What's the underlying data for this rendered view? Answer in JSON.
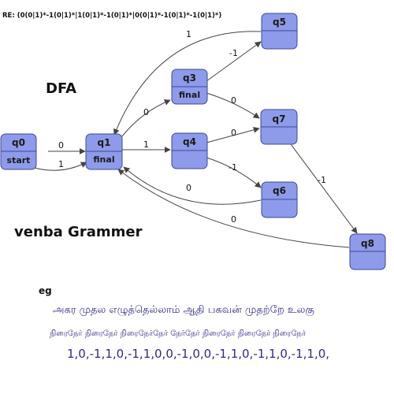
{
  "regex_line": "RE:  (0(0|1)*-1(0|1)*|1(0|1)*-1(0|1)*|0(0|1)*-1(0|1)*-1(0|1)*)",
  "dfa_title": "DFA",
  "venba_title": "venba Grammer",
  "example": {
    "label": "eg",
    "tamil_line": "அகர முதல எழுத்தெல்லாம் ஆதி பகவன் முதற்றே உலகு",
    "pattern_line": "நிரைநேர் நிரைநேர் நிரைநேர்நேர் நேர்நேர் நிரைநேர் நிரைநேர் நிரைநேர்",
    "numbers_line": "1,0,-1,1,0,-1,1,0,0,-1,0,0,-1,1,0,-1,1,0,-1,1,0,"
  },
  "states": [
    {
      "id": "q0",
      "name": "q0",
      "tag": "start"
    },
    {
      "id": "q1",
      "name": "q1",
      "tag": "final"
    },
    {
      "id": "q3",
      "name": "q3",
      "tag": "final"
    },
    {
      "id": "q4",
      "name": "q4",
      "tag": ""
    },
    {
      "id": "q5",
      "name": "q5",
      "tag": ""
    },
    {
      "id": "q6",
      "name": "q6",
      "tag": ""
    },
    {
      "id": "q7",
      "name": "q7",
      "tag": ""
    },
    {
      "id": "q8",
      "name": "q8",
      "tag": ""
    }
  ],
  "transitions": [
    {
      "from": "q0",
      "to": "q1",
      "label": "0"
    },
    {
      "from": "q0",
      "to": "q1",
      "label": "1"
    },
    {
      "from": "q1",
      "to": "q3",
      "label": "0"
    },
    {
      "from": "q1",
      "to": "q4",
      "label": "1"
    },
    {
      "from": "q3",
      "to": "q5",
      "label": "-1"
    },
    {
      "from": "q3",
      "to": "q7",
      "label": "0"
    },
    {
      "from": "q4",
      "to": "q7",
      "label": "0"
    },
    {
      "from": "q4",
      "to": "q6",
      "label": "-1"
    },
    {
      "from": "q5",
      "to": "q1",
      "label": "1"
    },
    {
      "from": "q6",
      "to": "q1",
      "label": "0"
    },
    {
      "from": "q7",
      "to": "q8",
      "label": "-1"
    },
    {
      "from": "q8",
      "to": "q1",
      "label": "0"
    }
  ]
}
